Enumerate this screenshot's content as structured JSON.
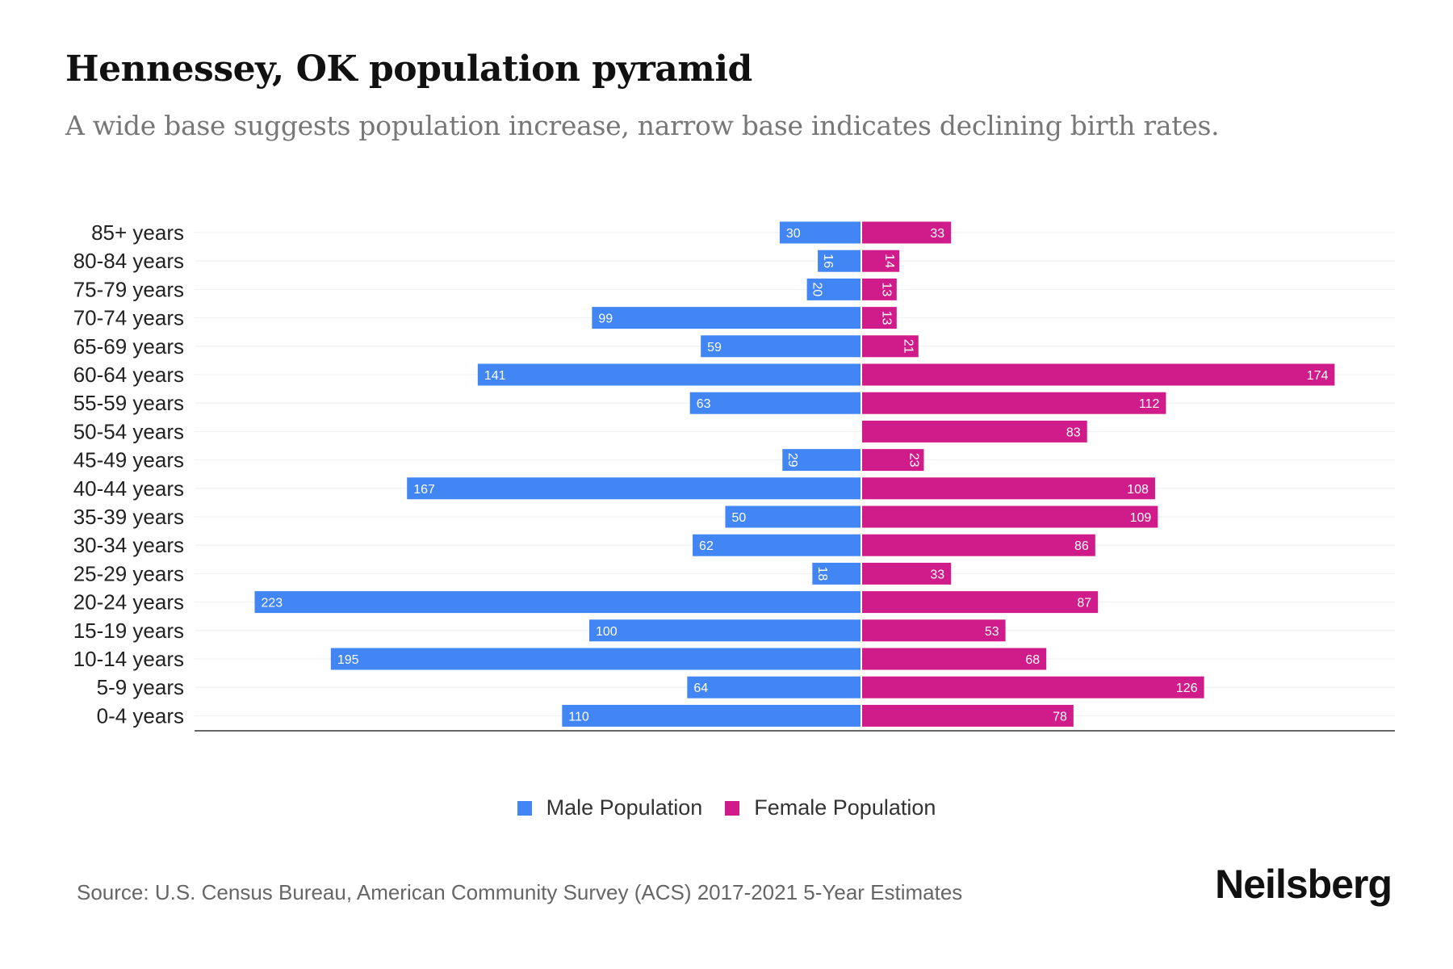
{
  "title": "Hennessey, OK population pyramid",
  "subtitle": "A wide base suggests population increase, narrow base indicates declining birth rates.",
  "source": "Source: U.S. Census Bureau, American Community Survey (ACS) 2017-2021 5-Year Estimates",
  "logo": "Neilsberg",
  "colors": {
    "male": "#4285f4",
    "female": "#d01c8b"
  },
  "chart_data": {
    "type": "bar",
    "orientation": "horizontal-pyramid",
    "title": "Hennessey, OK population pyramid",
    "categories": [
      "85+ years",
      "80-84 years",
      "75-79 years",
      "70-74 years",
      "65-69 years",
      "60-64 years",
      "55-59 years",
      "50-54 years",
      "45-49 years",
      "40-44 years",
      "35-39 years",
      "30-34 years",
      "25-29 years",
      "20-24 years",
      "15-19 years",
      "10-14 years",
      "5-9 years",
      "0-4 years"
    ],
    "series": [
      {
        "name": "Male Population",
        "values": [
          30,
          16,
          20,
          99,
          59,
          141,
          63,
          0,
          29,
          167,
          50,
          62,
          18,
          223,
          100,
          195,
          64,
          110
        ]
      },
      {
        "name": "Female Population",
        "values": [
          33,
          14,
          13,
          13,
          21,
          174,
          112,
          83,
          23,
          108,
          109,
          86,
          33,
          87,
          53,
          68,
          126,
          78
        ]
      }
    ],
    "legend": "bottom-center",
    "grid": true
  }
}
